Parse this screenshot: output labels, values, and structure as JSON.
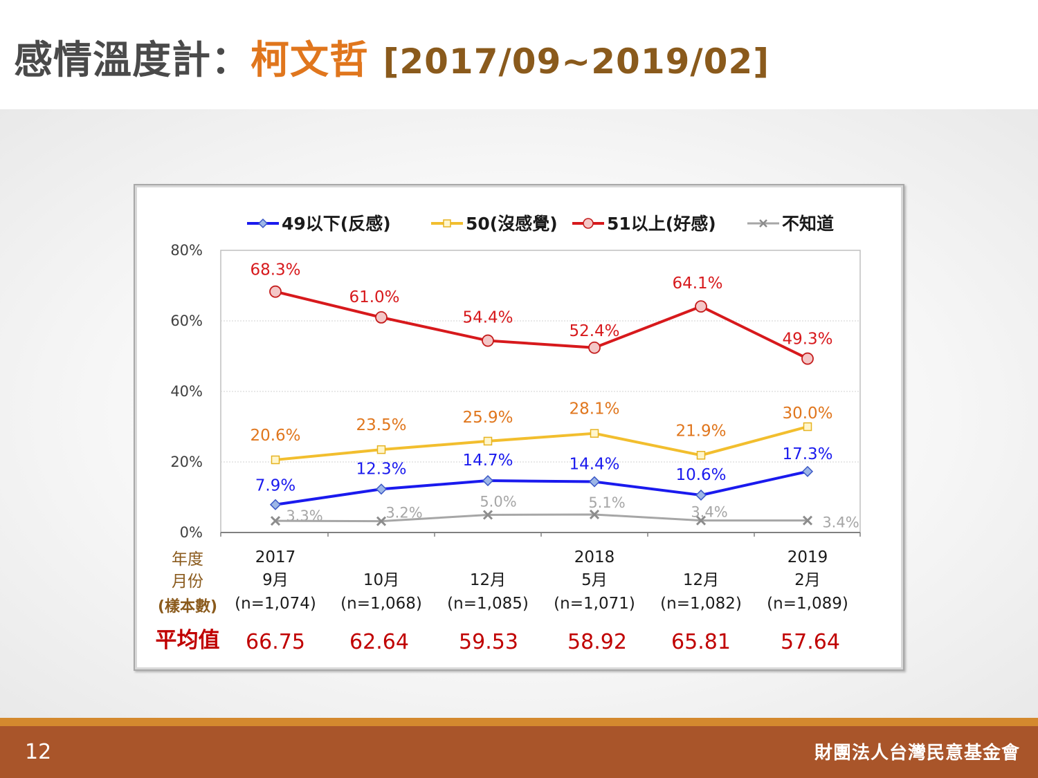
{
  "slide": {
    "title_prefix": "感情溫度計：",
    "title_subject": "柯文哲",
    "title_range": "[2017/09~2019/02]",
    "page_number": "12",
    "organization": "財團法人台灣民意基金會"
  },
  "colors": {
    "title_text": "#4a4a4a",
    "title_highlight": "#e0761d",
    "title_range": "#8a5a1c",
    "footer": "#a9552a",
    "footer_accent": "#d4892e"
  },
  "chart_data": {
    "type": "line",
    "ylim": [
      0,
      80
    ],
    "y_ticks": [
      "0%",
      "20%",
      "40%",
      "60%",
      "80%"
    ],
    "y_tick_values": [
      0,
      20,
      40,
      60,
      80
    ],
    "x_rows": {
      "years": [
        "2017",
        "",
        "",
        "2018",
        "",
        "2019"
      ],
      "months": [
        "9月",
        "10月",
        "12月",
        "5月",
        "12月",
        "2月"
      ],
      "samples": [
        "(n=1,074)",
        "(n=1,068)",
        "(n=1,085)",
        "(n=1,071)",
        "(n=1,082)",
        "(n=1,089)"
      ]
    },
    "row_labels": {
      "year": "年度",
      "month": "月份",
      "sample": "(樣本數)",
      "average": "平均值"
    },
    "averages": [
      "66.75",
      "62.64",
      "59.53",
      "58.92",
      "65.81",
      "57.64"
    ],
    "series": [
      {
        "name": "49以下(反感)",
        "color": "#1a1aee",
        "marker": "diamond",
        "values": [
          7.9,
          12.3,
          14.7,
          14.4,
          10.6,
          17.3
        ],
        "labels": [
          "7.9%",
          "12.3%",
          "14.7%",
          "14.4%",
          "10.6%",
          "17.3%"
        ]
      },
      {
        "name": "50(沒感覺)",
        "color": "#f2be2e",
        "label_color": "#e0761d",
        "marker": "square",
        "values": [
          20.6,
          23.5,
          25.9,
          28.1,
          21.9,
          30.0
        ],
        "labels": [
          "20.6%",
          "23.5%",
          "25.9%",
          "28.1%",
          "21.9%",
          "30.0%"
        ]
      },
      {
        "name": "51以上(好感)",
        "color": "#d7191c",
        "marker": "circle",
        "values": [
          68.3,
          61.0,
          54.4,
          52.4,
          64.1,
          49.3
        ],
        "labels": [
          "68.3%",
          "61.0%",
          "54.4%",
          "52.4%",
          "64.1%",
          "49.3%"
        ]
      },
      {
        "name": "不知道",
        "color": "#a6a6a6",
        "marker": "x",
        "values": [
          3.3,
          3.2,
          5.0,
          5.1,
          3.4,
          3.4
        ],
        "labels": [
          "3.3%",
          "3.2%",
          "5.0%",
          "5.1%",
          "3.4%",
          "3.4%"
        ]
      }
    ],
    "grid": true,
    "legend_position": "top"
  }
}
